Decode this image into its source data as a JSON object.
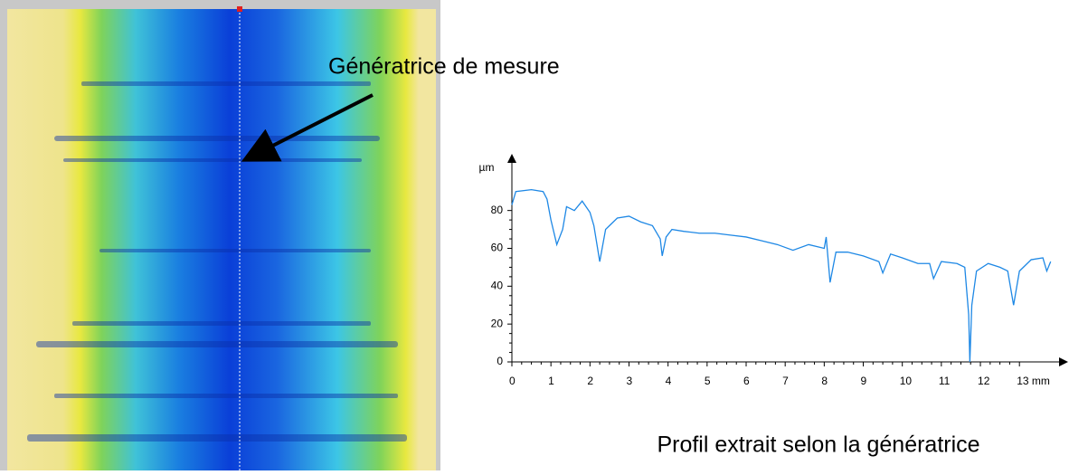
{
  "chart_data": {
    "type": "line",
    "ylabel": "µm",
    "annotations": [
      "Génératrice de mesure",
      "Profil extrait selon la génératrice"
    ],
    "x": [
      0,
      0.1,
      0.5,
      0.8,
      0.9,
      1.0,
      1.15,
      1.3,
      1.4,
      1.6,
      1.8,
      2.0,
      2.1,
      2.25,
      2.4,
      2.5,
      2.7,
      3.0,
      3.3,
      3.6,
      3.8,
      3.85,
      3.95,
      4.1,
      4.4,
      4.8,
      5.2,
      5.6,
      6.0,
      6.4,
      6.8,
      7.2,
      7.6,
      8.0,
      8.05,
      8.15,
      8.3,
      8.6,
      9.0,
      9.4,
      9.5,
      9.7,
      10.0,
      10.4,
      10.7,
      10.8,
      11.0,
      11.4,
      11.6,
      11.7,
      11.73,
      11.78,
      11.9,
      12.2,
      12.5,
      12.7,
      12.85,
      13.0,
      13.3,
      13.6,
      13.7,
      13.8
    ],
    "series": [
      {
        "name": "profil",
        "color": "#1e88e5",
        "values": [
          83,
          90,
          91,
          90,
          86,
          75,
          62,
          70,
          82,
          80,
          85,
          79,
          72,
          53,
          70,
          72,
          76,
          77,
          74,
          72,
          65,
          56,
          66,
          70,
          69,
          68,
          68,
          67,
          66,
          64,
          62,
          59,
          62,
          60,
          66,
          42,
          58,
          58,
          56,
          53,
          47,
          57,
          55,
          52,
          52,
          44,
          53,
          52,
          50,
          25,
          0,
          30,
          48,
          52,
          50,
          48,
          30,
          48,
          54,
          55,
          48,
          53
        ]
      }
    ],
    "xlim": [
      0,
      14.2
    ],
    "ylim": [
      0,
      109
    ],
    "xticks": [
      0,
      1,
      2,
      3,
      4,
      5,
      6,
      7,
      8,
      9,
      10,
      11,
      12,
      {
        "value": 13,
        "label": "13 mm"
      }
    ],
    "yticks": [
      0,
      20,
      40,
      60,
      80
    ],
    "grid": false
  }
}
